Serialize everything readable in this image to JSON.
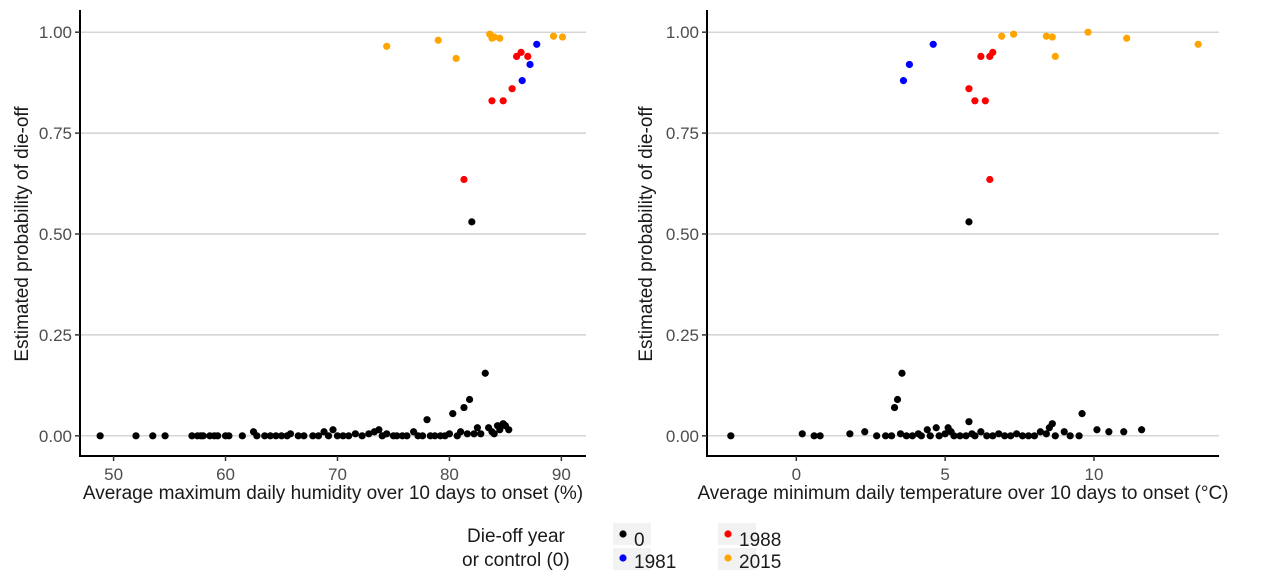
{
  "colors": {
    "0": "#000000",
    "1981": "#0000ff",
    "1988": "#ff0000",
    "2015": "#ffa500"
  },
  "legend": {
    "title_line1": "Die-off year",
    "title_line2": "or control (0)",
    "entries": [
      "0",
      "1981",
      "1988",
      "2015"
    ]
  },
  "chart_data": [
    {
      "type": "scatter",
      "title": "",
      "xlabel": "Average maximum daily humidity over 10 days to onset (%)",
      "ylabel": "Estimated probability of die-off",
      "xlim": [
        47,
        92.2
      ],
      "ylim": [
        -0.05,
        1.05
      ],
      "x_ticks": [
        50,
        60,
        70,
        80,
        90
      ],
      "x_tick_labels": [
        "50",
        "60",
        "70",
        "80",
        "90"
      ],
      "y_ticks": [
        0,
        0.25,
        0.5,
        0.75,
        1.0
      ],
      "y_tick_labels": [
        "0.00",
        "0.25",
        "0.50",
        "0.75",
        "1.00"
      ],
      "grid": true,
      "series": [
        {
          "name": "0",
          "color": "#000000",
          "points": [
            [
              48.8,
              0
            ],
            [
              52,
              0
            ],
            [
              53.5,
              0
            ],
            [
              54.6,
              0
            ],
            [
              57,
              0
            ],
            [
              57.5,
              0
            ],
            [
              57.8,
              0
            ],
            [
              58,
              0
            ],
            [
              58.6,
              0
            ],
            [
              59,
              0
            ],
            [
              59.3,
              0
            ],
            [
              60,
              0
            ],
            [
              60.3,
              0
            ],
            [
              61.5,
              0
            ],
            [
              62.5,
              0.01
            ],
            [
              62.8,
              0
            ],
            [
              63.5,
              0
            ],
            [
              64,
              0
            ],
            [
              64.5,
              0
            ],
            [
              65,
              0
            ],
            [
              65.5,
              0
            ],
            [
              65.8,
              0.005
            ],
            [
              66.5,
              0
            ],
            [
              67,
              0
            ],
            [
              67.8,
              0
            ],
            [
              68.3,
              0
            ],
            [
              68.8,
              0.01
            ],
            [
              69.2,
              0
            ],
            [
              69.6,
              0.015
            ],
            [
              70,
              0
            ],
            [
              70.5,
              0
            ],
            [
              71,
              0
            ],
            [
              71.6,
              0.005
            ],
            [
              72.2,
              0
            ],
            [
              72.8,
              0.005
            ],
            [
              73.3,
              0.01
            ],
            [
              73.7,
              0.015
            ],
            [
              74,
              0
            ],
            [
              74.4,
              0.005
            ],
            [
              75,
              0
            ],
            [
              75.3,
              0
            ],
            [
              75.8,
              0
            ],
            [
              76.2,
              0
            ],
            [
              76.8,
              0.01
            ],
            [
              77.2,
              0
            ],
            [
              77.6,
              0
            ],
            [
              78,
              0.04
            ],
            [
              78.3,
              0
            ],
            [
              78.7,
              0
            ],
            [
              79.2,
              0
            ],
            [
              79.6,
              0
            ],
            [
              80,
              0.005
            ],
            [
              80.3,
              0.055
            ],
            [
              80.7,
              0
            ],
            [
              81,
              0.01
            ],
            [
              81.3,
              0.07
            ],
            [
              81.6,
              0.005
            ],
            [
              81.8,
              0.09
            ],
            [
              82,
              0.53
            ],
            [
              82.2,
              0.005
            ],
            [
              82.5,
              0.02
            ],
            [
              82.8,
              0.005
            ],
            [
              83.2,
              0.155
            ],
            [
              83.5,
              0.02
            ],
            [
              83.8,
              0.01
            ],
            [
              84,
              0.005
            ],
            [
              84.3,
              0.025
            ],
            [
              84.5,
              0.015
            ],
            [
              84.8,
              0.03
            ],
            [
              85,
              0.025
            ],
            [
              85.3,
              0.015
            ]
          ]
        },
        {
          "name": "1981",
          "color": "#0000ff",
          "points": [
            [
              86.5,
              0.88
            ],
            [
              87.2,
              0.92
            ],
            [
              87.8,
              0.97
            ]
          ]
        },
        {
          "name": "1988",
          "color": "#ff0000",
          "points": [
            [
              81.3,
              0.635
            ],
            [
              83.8,
              0.83
            ],
            [
              84.8,
              0.83
            ],
            [
              85.6,
              0.86
            ],
            [
              86,
              0.94
            ],
            [
              86.4,
              0.95
            ],
            [
              87,
              0.94
            ]
          ]
        },
        {
          "name": "2015",
          "color": "#ffa500",
          "points": [
            [
              74.4,
              0.965
            ],
            [
              79,
              0.98
            ],
            [
              80.6,
              0.935
            ],
            [
              83.6,
              0.995
            ],
            [
              83.8,
              0.985
            ],
            [
              84,
              0.988
            ],
            [
              84.5,
              0.985
            ],
            [
              89.3,
              0.99
            ],
            [
              90.1,
              0.988
            ]
          ]
        }
      ]
    },
    {
      "type": "scatter",
      "title": "",
      "xlabel": "Average minimum daily temperature over 10 days to onset (°C)",
      "ylabel": "Estimated probability of die-off",
      "xlim": [
        -3,
        14.2
      ],
      "ylim": [
        -0.05,
        1.05
      ],
      "x_ticks": [
        0,
        5,
        10
      ],
      "x_tick_labels": [
        "0",
        "5",
        "10"
      ],
      "y_ticks": [
        0,
        0.25,
        0.5,
        0.75,
        1.0
      ],
      "y_tick_labels": [
        "0.00",
        "0.25",
        "0.50",
        "0.75",
        "1.00"
      ],
      "grid": true,
      "series": [
        {
          "name": "0",
          "color": "#000000",
          "points": [
            [
              -2.2,
              0
            ],
            [
              0.2,
              0.005
            ],
            [
              0.6,
              0
            ],
            [
              0.8,
              0
            ],
            [
              1.8,
              0.005
            ],
            [
              2.3,
              0.01
            ],
            [
              2.7,
              0
            ],
            [
              3,
              0
            ],
            [
              3.2,
              0
            ],
            [
              3.3,
              0.07
            ],
            [
              3.4,
              0.09
            ],
            [
              3.5,
              0.005
            ],
            [
              3.55,
              0.155
            ],
            [
              3.7,
              0
            ],
            [
              3.9,
              0
            ],
            [
              4.1,
              0.005
            ],
            [
              4.2,
              0
            ],
            [
              4.4,
              0.015
            ],
            [
              4.5,
              0
            ],
            [
              4.7,
              0.02
            ],
            [
              4.8,
              0
            ],
            [
              5,
              0.005
            ],
            [
              5.1,
              0.02
            ],
            [
              5.2,
              0.01
            ],
            [
              5.3,
              0
            ],
            [
              5.5,
              0
            ],
            [
              5.7,
              0
            ],
            [
              5.8,
              0.035
            ],
            [
              5.8,
              0.53
            ],
            [
              5.9,
              0.005
            ],
            [
              6,
              0
            ],
            [
              6.2,
              0.01
            ],
            [
              6.4,
              0
            ],
            [
              6.6,
              0
            ],
            [
              6.8,
              0.005
            ],
            [
              7,
              0
            ],
            [
              7.2,
              0
            ],
            [
              7.4,
              0.005
            ],
            [
              7.6,
              0
            ],
            [
              7.8,
              0
            ],
            [
              8,
              0
            ],
            [
              8.2,
              0.01
            ],
            [
              8.4,
              0.005
            ],
            [
              8.5,
              0.02
            ],
            [
              8.6,
              0.03
            ],
            [
              8.7,
              0
            ],
            [
              9,
              0.01
            ],
            [
              9.2,
              0
            ],
            [
              9.5,
              0
            ],
            [
              9.6,
              0.055
            ],
            [
              10.1,
              0.015
            ],
            [
              10.5,
              0.01
            ],
            [
              11,
              0.01
            ],
            [
              11.6,
              0.015
            ]
          ]
        },
        {
          "name": "1981",
          "color": "#0000ff",
          "points": [
            [
              3.6,
              0.88
            ],
            [
              3.8,
              0.92
            ],
            [
              4.6,
              0.97
            ]
          ]
        },
        {
          "name": "1988",
          "color": "#ff0000",
          "points": [
            [
              5.8,
              0.86
            ],
            [
              6,
              0.83
            ],
            [
              6.2,
              0.94
            ],
            [
              6.35,
              0.83
            ],
            [
              6.5,
              0.94
            ],
            [
              6.6,
              0.95
            ],
            [
              6.5,
              0.635
            ]
          ]
        },
        {
          "name": "2015",
          "color": "#ffa500",
          "points": [
            [
              6.9,
              0.99
            ],
            [
              7.3,
              0.995
            ],
            [
              8.4,
              0.99
            ],
            [
              8.6,
              0.988
            ],
            [
              8.7,
              0.94
            ],
            [
              9.8,
              1.0
            ],
            [
              11.1,
              0.985
            ],
            [
              13.5,
              0.97
            ]
          ]
        }
      ]
    }
  ]
}
